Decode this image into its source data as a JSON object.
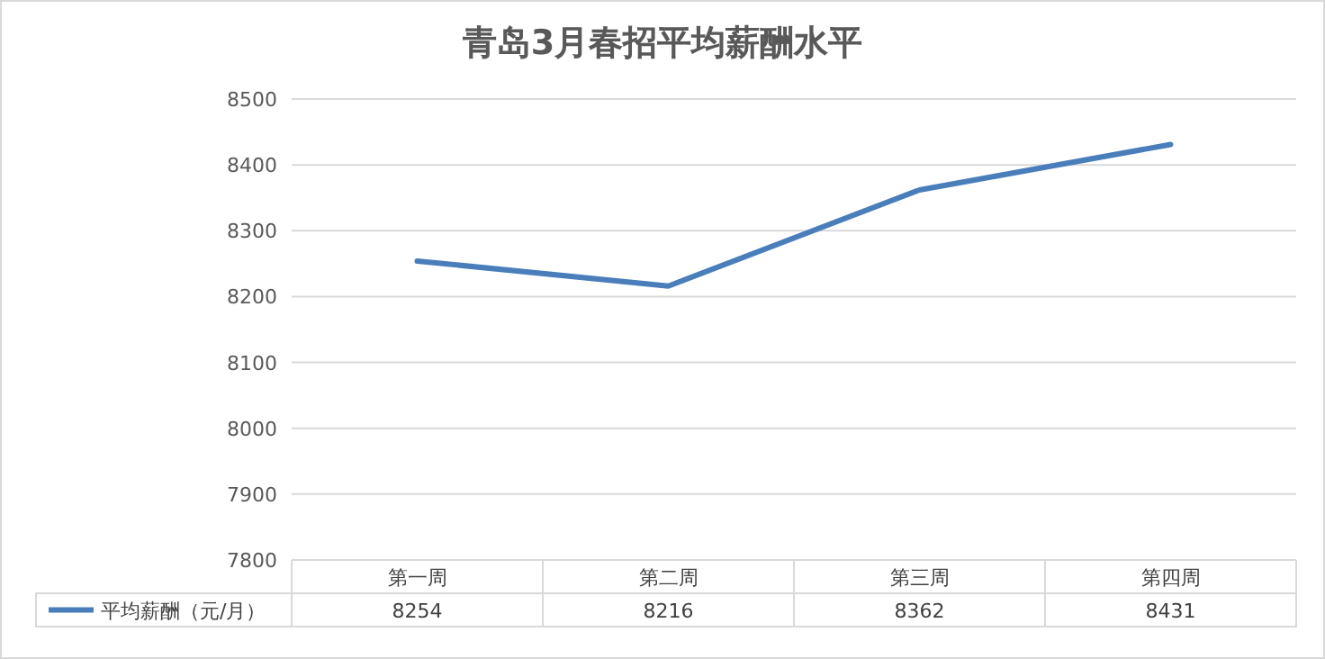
{
  "chart_data": {
    "type": "line",
    "title": "青岛3月春招平均薪酬水平",
    "categories": [
      "第一周",
      "第二周",
      "第三周",
      "第四周"
    ],
    "series": [
      {
        "name": "平均薪酬（元/月）",
        "color": "#4a7ebb",
        "values": [
          8254,
          8216,
          8362,
          8431
        ]
      }
    ],
    "ylim": [
      7800,
      8500
    ],
    "yticks": [
      7800,
      7900,
      8000,
      8100,
      8200,
      8300,
      8400,
      8500
    ],
    "grid": "y",
    "legend": "bottom",
    "data_labels": true,
    "marker": "none",
    "line_style": "solid"
  }
}
